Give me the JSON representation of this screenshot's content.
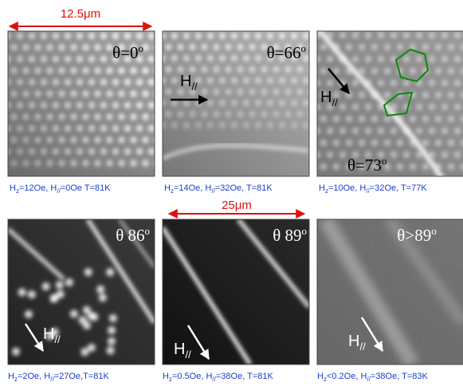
{
  "scale_bars": [
    "12.5μm",
    "25μm"
  ],
  "panels": [
    {
      "angle": [
        "θ=0",
        "o"
      ],
      "field": null,
      "caption": [
        "H",
        "z",
        "=12Oe, H",
        "//",
        "=0Oe T=81K"
      ]
    },
    {
      "angle": [
        "θ=66",
        "o"
      ],
      "field": [
        "H",
        "//"
      ],
      "caption": [
        "H",
        "z",
        "=14Oe, H",
        "//",
        "=32Oe, T=81K"
      ]
    },
    {
      "angle": [
        "θ=73",
        "o"
      ],
      "field": [
        "H",
        "//"
      ],
      "caption": [
        "H",
        "z",
        "=10Oe, H",
        "//",
        "=32Oe, T=77K"
      ]
    },
    {
      "angle": [
        "θ  86",
        "o"
      ],
      "field": [
        "H",
        "//"
      ],
      "caption": [
        "H",
        "z",
        "=2Oe, H",
        "//",
        "=27Oe,T=81K"
      ]
    },
    {
      "angle": [
        "θ  89",
        "o"
      ],
      "field": [
        "H",
        "//"
      ],
      "caption": [
        "H",
        "z",
        "=0.5Oe, H",
        "//",
        "=38Oe, T=81K"
      ]
    },
    {
      "angle": [
        "θ>89",
        "o"
      ],
      "field": [
        "H",
        "//"
      ],
      "caption": [
        "H",
        "z",
        "<0.2Oe, H",
        "//",
        "=38Oe, T=83K"
      ]
    }
  ]
}
